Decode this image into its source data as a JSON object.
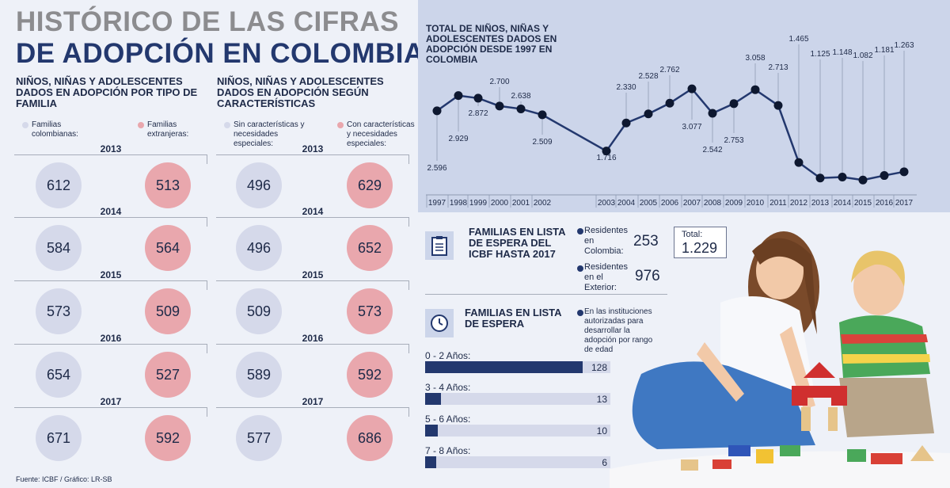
{
  "title": {
    "line1": "HISTÓRICO DE LAS CIFRAS",
    "line2": "DE ADOPCIÓN EN COLOMBIA"
  },
  "section_family": {
    "heading": "NIÑOS, NIÑAS Y ADOLESCENTES DADOS EN ADOPCIÓN POR TIPO DE FAMILIA",
    "legend_a": "Familias colombianas:",
    "legend_b": "Familias extranjeras:",
    "colors": {
      "a": "#d5d9ea",
      "b": "#e9a7ad"
    },
    "rows": [
      {
        "year": "2013",
        "a": "612",
        "b": "513"
      },
      {
        "year": "2014",
        "a": "584",
        "b": "564"
      },
      {
        "year": "2015",
        "a": "573",
        "b": "509"
      },
      {
        "year": "2016",
        "a": "654",
        "b": "527"
      },
      {
        "year": "2017",
        "a": "671",
        "b": "592"
      }
    ]
  },
  "section_char": {
    "heading": "NIÑOS, NIÑAS Y ADOLESCENTES DADOS EN ADOPCIÓN SEGÚN CARACTERÍSTICAS",
    "legend_a": "Sin características y necesidades especiales:",
    "legend_b": "Con características y necesidades especiales:",
    "rows": [
      {
        "year": "2013",
        "a": "496",
        "b": "629"
      },
      {
        "year": "2014",
        "a": "496",
        "b": "652"
      },
      {
        "year": "2015",
        "a": "509",
        "b": "573"
      },
      {
        "year": "2016",
        "a": "589",
        "b": "592"
      },
      {
        "year": "2017",
        "a": "577",
        "b": "686"
      }
    ]
  },
  "chart_data": {
    "type": "line",
    "title": "TOTAL DE NIÑOS, NIÑAS Y ADOLESCENTES DADOS EN ADOPCIÓN DESDE 1997 EN COLOMBIA",
    "x": [
      "1997",
      "1998",
      "1999",
      "2000",
      "2001",
      "2002",
      "2003",
      "2004",
      "2005",
      "2006",
      "2007",
      "2008",
      "2009",
      "2010",
      "2011",
      "2012",
      "2013",
      "2014",
      "2015",
      "2016",
      "2017"
    ],
    "values": [
      2596,
      2929,
      2872,
      2700,
      2638,
      2509,
      1716,
      2330,
      2528,
      2762,
      3077,
      2542,
      2753,
      3058,
      2713,
      1465,
      1125,
      1148,
      1082,
      1181,
      1263
    ],
    "labels": [
      "2.596",
      "2.929",
      "2.872",
      "2.700",
      "2.638",
      "2.509",
      "1.716",
      "2.330",
      "2.528",
      "2.762",
      "3.077",
      "2.542",
      "2.753",
      "3.058",
      "2.713",
      "1.465",
      "1.125",
      "1.148",
      "1.082",
      "1.181",
      "1.263"
    ],
    "line_color": "#23386e",
    "grid": false
  },
  "waitlist_icbf": {
    "heading": "FAMILIAS EN LISTA DE ESPERA DEL ICBF HASTA 2017",
    "residents_co_label": "Residentes en Colombia:",
    "residents_co_value": "253",
    "residents_ext_label": "Residentes en el Exterior:",
    "residents_ext_value": "976",
    "total_label": "Total:",
    "total_value": "1.229"
  },
  "waitlist_age": {
    "heading": "FAMILIAS EN LISTA DE ESPERA",
    "note": "En las instituciones autorizadas para desarrollar la adopción por rango de edad",
    "bars": [
      {
        "label": "0 - 2 Años:",
        "value": 128
      },
      {
        "label": "3 - 4 Años:",
        "value": 13
      },
      {
        "label": "5 - 6 Años:",
        "value": 10
      },
      {
        "label": "7 - 8 Años:",
        "value": 6
      }
    ]
  },
  "source": "Fuente: ICBF / Gráfico: LR-SB"
}
